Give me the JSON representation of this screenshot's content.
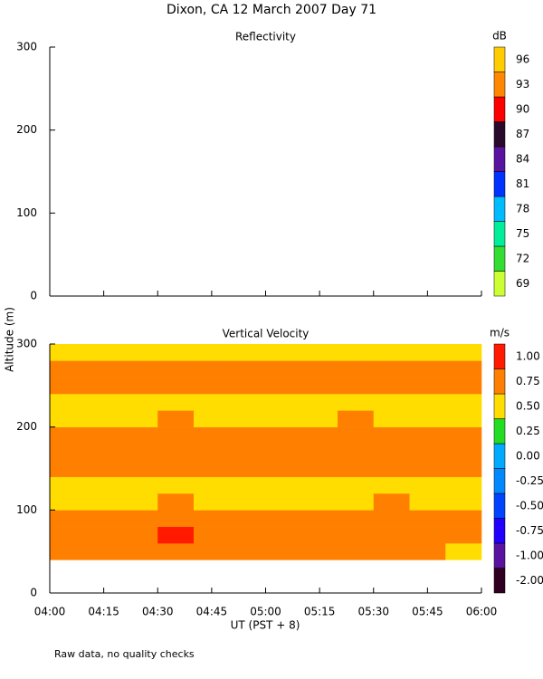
{
  "title": "Dixon, CA 12 March 2007  Day  71",
  "ylabel": "Altitude (m)",
  "xlabel": "UT  (PST + 8)",
  "note": "Raw data, no quality checks",
  "chart_data": [
    {
      "type": "heatmap",
      "title": "Reflectivity",
      "ylim": [
        0,
        300
      ],
      "yticks": [
        0,
        100,
        200,
        300
      ],
      "colorbar": {
        "label": "dB",
        "ticks": [
          69,
          72,
          75,
          78,
          81,
          84,
          87,
          90,
          93,
          96
        ],
        "colors": [
          "#ccff33",
          "#33dd33",
          "#00ee99",
          "#00bbff",
          "#0033ff",
          "#5a12a0",
          "#2a0a2a",
          "#ff0000",
          "#ff8800",
          "#ffcc00"
        ]
      }
    },
    {
      "type": "heatmap",
      "title": "Vertical Velocity",
      "xlim": [
        240,
        360
      ],
      "xticks": [
        {
          "value": 240,
          "label": "04:00"
        },
        {
          "value": 255,
          "label": "04:15"
        },
        {
          "value": 270,
          "label": "04:30"
        },
        {
          "value": 285,
          "label": "04:45"
        },
        {
          "value": 300,
          "label": "05:00"
        },
        {
          "value": 315,
          "label": "05:15"
        },
        {
          "value": 330,
          "label": "05:30"
        },
        {
          "value": 345,
          "label": "05:45"
        },
        {
          "value": 360,
          "label": "06:00"
        }
      ],
      "ylim": [
        0,
        300
      ],
      "yticks": [
        0,
        100,
        200,
        300
      ],
      "x_edges": [
        240,
        250,
        260,
        270,
        280,
        290,
        300,
        310,
        320,
        330,
        340,
        350,
        360
      ],
      "y_edges": [
        40,
        60,
        80,
        100,
        120,
        140,
        160,
        180,
        200,
        220,
        240,
        260,
        280,
        300
      ],
      "values": [
        [
          0.65,
          0.7,
          0.7,
          0.75,
          0.7,
          0.7,
          0.7,
          0.65,
          0.7,
          0.7,
          0.7,
          0.6
        ],
        [
          0.8,
          0.8,
          0.85,
          0.9,
          0.85,
          0.8,
          0.8,
          0.8,
          0.75,
          0.8,
          0.85,
          0.7
        ],
        [
          0.8,
          0.75,
          0.8,
          0.85,
          0.8,
          0.75,
          0.8,
          0.75,
          0.8,
          0.8,
          0.8,
          0.7
        ],
        [
          0.6,
          0.55,
          0.6,
          0.65,
          0.6,
          0.6,
          0.6,
          0.55,
          0.6,
          0.65,
          0.6,
          0.6
        ],
        [
          0.55,
          0.5,
          0.55,
          0.6,
          0.55,
          0.5,
          0.55,
          0.5,
          0.55,
          0.6,
          0.55,
          0.55
        ],
        [
          0.7,
          0.7,
          0.75,
          0.75,
          0.7,
          0.7,
          0.7,
          0.7,
          0.75,
          0.7,
          0.7,
          0.7
        ],
        [
          0.8,
          0.8,
          0.75,
          0.8,
          0.85,
          0.8,
          0.8,
          0.8,
          0.85,
          0.8,
          0.75,
          0.75
        ],
        [
          0.75,
          0.75,
          0.8,
          0.8,
          0.8,
          0.75,
          0.8,
          0.75,
          0.8,
          0.75,
          0.7,
          0.7
        ],
        [
          0.6,
          0.6,
          0.6,
          0.65,
          0.6,
          0.6,
          0.6,
          0.6,
          0.65,
          0.6,
          0.6,
          0.6
        ],
        [
          0.6,
          0.55,
          0.6,
          0.6,
          0.55,
          0.6,
          0.6,
          0.55,
          0.6,
          0.55,
          0.6,
          0.6
        ],
        [
          0.7,
          0.7,
          0.7,
          0.75,
          0.8,
          0.7,
          0.7,
          0.7,
          0.75,
          0.7,
          0.7,
          0.7
        ],
        [
          0.65,
          0.7,
          0.7,
          0.7,
          0.75,
          0.7,
          0.65,
          0.7,
          0.7,
          0.65,
          0.7,
          0.7
        ],
        [
          0.6,
          0.55,
          0.6,
          0.6,
          0.6,
          0.55,
          0.6,
          0.6,
          0.55,
          0.6,
          0.55,
          0.6
        ]
      ],
      "colorbar": {
        "label": "m/s",
        "ticks": [
          {
            "value": -2,
            "label": "-2.00"
          },
          {
            "value": -1,
            "label": "-1.00"
          },
          {
            "value": -0.75,
            "label": "-0.75"
          },
          {
            "value": -0.5,
            "label": "-0.50"
          },
          {
            "value": -0.25,
            "label": "-0.25"
          },
          {
            "value": 0,
            "label": "0.00"
          },
          {
            "value": 0.25,
            "label": "0.25"
          },
          {
            "value": 0.5,
            "label": "0.50"
          },
          {
            "value": 0.75,
            "label": "0.75"
          },
          {
            "value": 1,
            "label": "1.00"
          }
        ],
        "colors": [
          "#300020",
          "#5a12a0",
          "#2200ff",
          "#0044ff",
          "#0088ff",
          "#00aaff",
          "#22dd22",
          "#ffdd00",
          "#ff8000",
          "#ff1a00"
        ]
      }
    }
  ]
}
